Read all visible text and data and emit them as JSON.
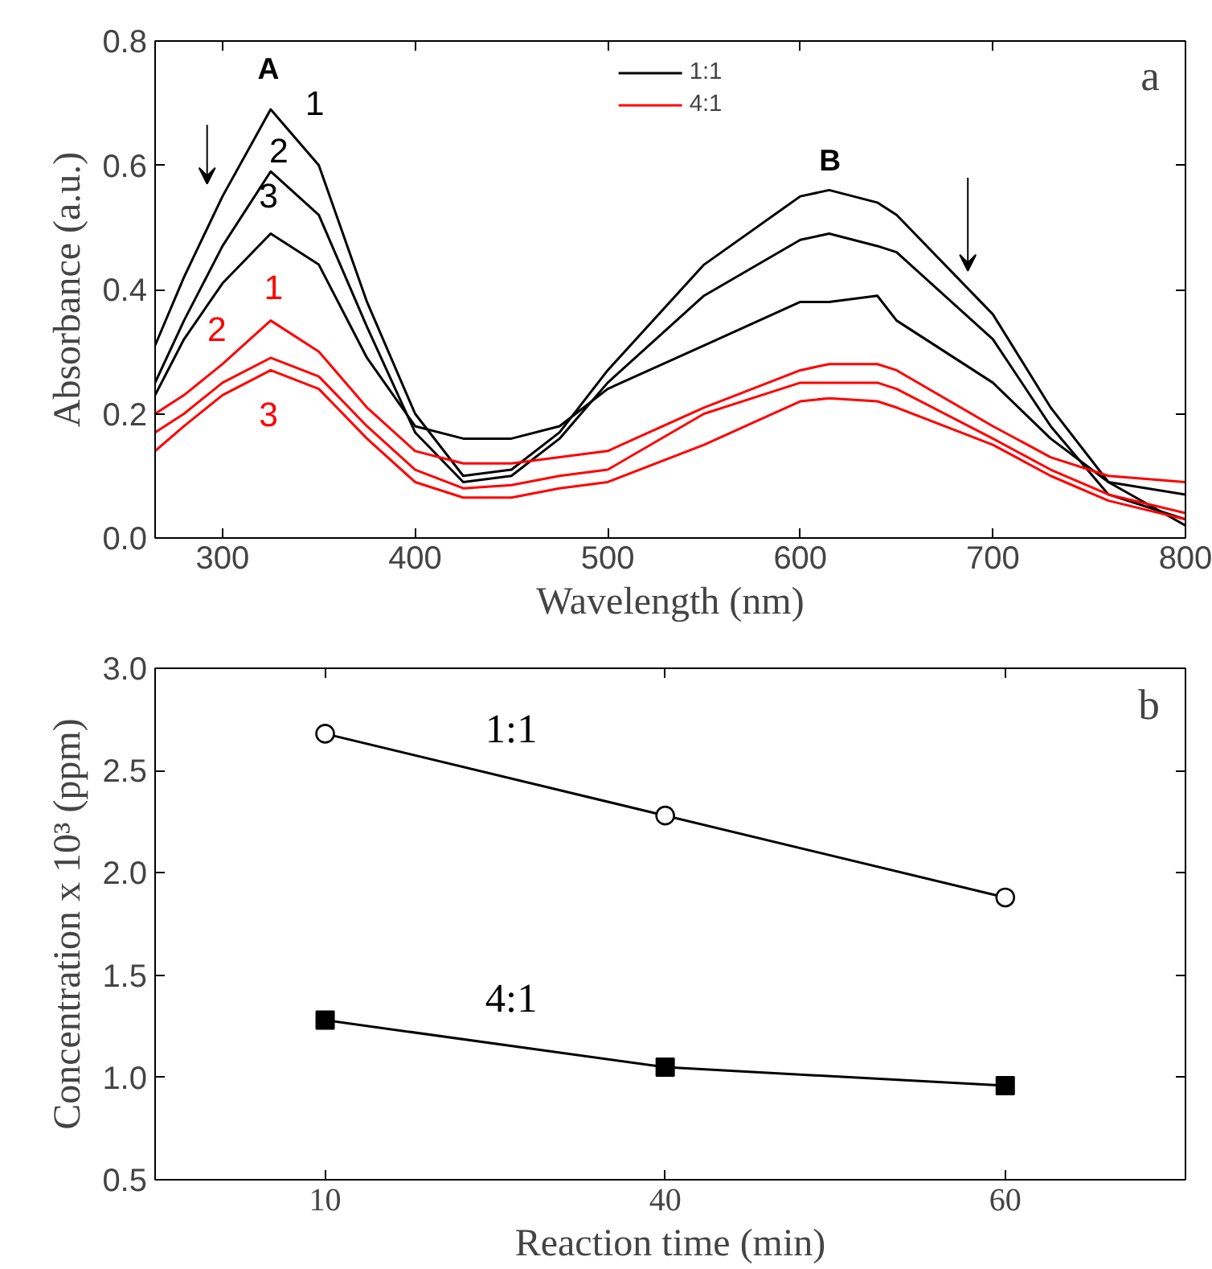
{
  "chart_data": [
    {
      "type": "line",
      "xlabel": "Wavelength (nm)",
      "ylabel": "Absorbance (a.u.)",
      "x": [
        265,
        280,
        300,
        325,
        350,
        375,
        400,
        425,
        450,
        475,
        500,
        550,
        600,
        615,
        640,
        650,
        700,
        730,
        760,
        800
      ],
      "series": [
        {
          "name": "1:1",
          "color": "#000000",
          "values": [
            0.31,
            0.42,
            0.55,
            0.69,
            0.6,
            0.38,
            0.2,
            0.1,
            0.11,
            0.17,
            0.27,
            0.44,
            0.55,
            0.56,
            0.54,
            0.52,
            0.36,
            0.21,
            0.09,
            0.02
          ]
        },
        {
          "color": "#000000",
          "values": [
            0.25,
            0.35,
            0.47,
            0.59,
            0.52,
            0.34,
            0.17,
            0.09,
            0.1,
            0.16,
            0.25,
            0.39,
            0.48,
            0.49,
            0.47,
            0.46,
            0.32,
            0.18,
            0.07,
            0.03
          ]
        },
        {
          "color": "#000000",
          "values": [
            0.23,
            0.32,
            0.41,
            0.49,
            0.44,
            0.29,
            0.18,
            0.16,
            0.16,
            0.18,
            0.24,
            0.31,
            0.38,
            0.38,
            0.39,
            0.35,
            0.25,
            0.16,
            0.09,
            0.07
          ]
        },
        {
          "name": "4:1",
          "color": "#ff0000",
          "values": [
            0.2,
            0.23,
            0.28,
            0.35,
            0.3,
            0.21,
            0.14,
            0.12,
            0.12,
            0.13,
            0.14,
            0.21,
            0.27,
            0.28,
            0.28,
            0.27,
            0.18,
            0.13,
            0.1,
            0.09
          ]
        },
        {
          "color": "#ff0000",
          "values": [
            0.17,
            0.2,
            0.25,
            0.29,
            0.26,
            0.18,
            0.11,
            0.08,
            0.085,
            0.1,
            0.11,
            0.2,
            0.25,
            0.25,
            0.25,
            0.24,
            0.16,
            0.11,
            0.07,
            0.04
          ]
        },
        {
          "color": "#ff0000",
          "values": [
            0.14,
            0.18,
            0.23,
            0.27,
            0.24,
            0.16,
            0.09,
            0.065,
            0.065,
            0.08,
            0.09,
            0.15,
            0.22,
            0.225,
            0.22,
            0.21,
            0.15,
            0.1,
            0.06,
            0.03
          ]
        }
      ],
      "xlim": [
        265,
        800
      ],
      "xticks": [
        300,
        400,
        500,
        600,
        700,
        800
      ],
      "ylim": [
        0,
        0.8
      ],
      "yticks": [
        {
          "value": 0,
          "label": "0.0"
        },
        0.2,
        0.4,
        0.6,
        0.8
      ],
      "legend": "top",
      "grid": false,
      "line_style": "solid",
      "annotations": [
        "a",
        "A",
        "B",
        "1",
        "2",
        "3",
        "1",
        "2",
        "3"
      ]
    },
    {
      "type": "line",
      "xlabel": "Reaction time (min)",
      "ylabel": "Concentration x 10³ (ppm)",
      "categories": [
        "10",
        "40",
        "60"
      ],
      "series": [
        {
          "name": "1:1",
          "color": "#000000",
          "marker": "circle",
          "values": [
            2.68,
            2.28,
            1.88
          ]
        },
        {
          "name": "4:1",
          "color": "#000000",
          "marker": "square",
          "values": [
            1.28,
            1.05,
            0.96
          ]
        }
      ],
      "ylim": [
        0.5,
        3.0
      ],
      "yticks": [
        0.5,
        {
          "value": 1,
          "label": "1.0"
        },
        1.5,
        {
          "value": 2,
          "label": "2.0"
        },
        2.5,
        {
          "value": 3,
          "label": "3.0"
        }
      ],
      "legend": false,
      "grid": false,
      "annotations": [
        "b"
      ]
    }
  ]
}
